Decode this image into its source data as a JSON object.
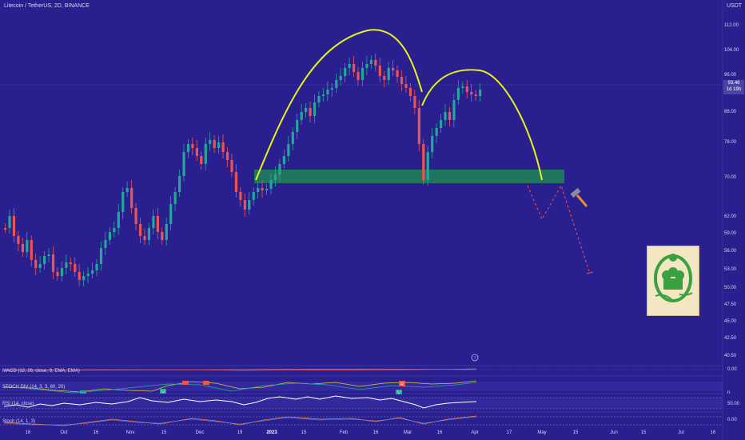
{
  "header": {
    "symbol_line": "Litecoin / TetherUS, 2D, BINANCE",
    "currency": "USDT"
  },
  "price_axis": {
    "ticks": [
      "112.00",
      "104.00",
      "96.00",
      "86.00",
      "78.00",
      "70.00",
      "62.00",
      "59.00",
      "56.00",
      "53.00",
      "50.00",
      "47.50",
      "45.00",
      "42.50",
      "40.50"
    ],
    "current_price": "93.46",
    "current_sub": "1d 19h"
  },
  "indicator_axis": {
    "macd_zero": "0.00",
    "stoch_n": "n",
    "rsi_50": "50.00",
    "stoch_0": "0.00"
  },
  "indicators": {
    "macd": "MACD (12, 26, close, 9, EMA, EMA)",
    "stoch_div": "STOCH DIV (14, 3, 3, 80, 20)",
    "rsi": "RSI (14, close)",
    "stoch": "Stoch (14, 1, 3)"
  },
  "time_axis": [
    "16",
    "Oct",
    "16",
    "Nov",
    "15",
    "Dec",
    "19",
    "2023",
    "15",
    "Feb",
    "16",
    "Mar",
    "16",
    "Apr",
    "17",
    "May",
    "15",
    "Jun",
    "15",
    "Jul",
    "16"
  ],
  "markers": {
    "mark_u": "U",
    "mark_r": "R",
    "info": "?"
  },
  "colors": {
    "background": "#2a1f8f",
    "up_candle": "#26a69a",
    "down_candle": "#ef5350",
    "pattern_curve": "#e6f21b",
    "support_zone": "#1f7a5c",
    "projection": "#ef5350"
  }
}
